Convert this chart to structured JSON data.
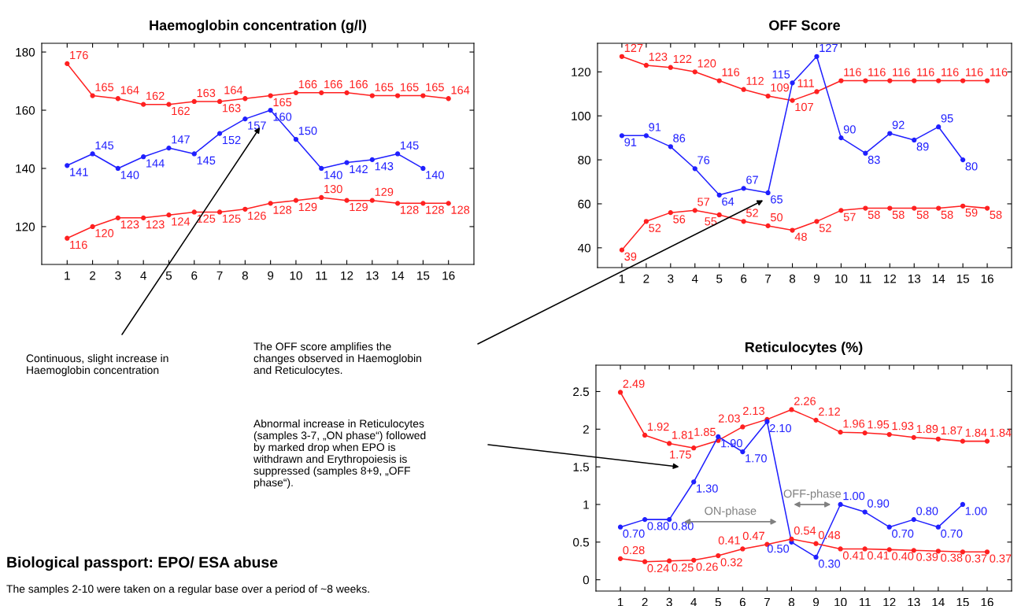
{
  "chart_data": [
    {
      "type": "line",
      "title": "Haemoglobin concentration (g/l)",
      "x": [
        1,
        2,
        3,
        4,
        5,
        6,
        7,
        8,
        9,
        10,
        11,
        12,
        13,
        14,
        15,
        16
      ],
      "xlim": [
        0,
        17
      ],
      "xticks": [
        1,
        2,
        3,
        4,
        5,
        6,
        7,
        8,
        9,
        10,
        11,
        12,
        13,
        14,
        15,
        16
      ],
      "ylim": [
        107,
        183
      ],
      "yticks": [
        120,
        140,
        160,
        180
      ],
      "marker": "circle",
      "data_labels": true,
      "series": [
        {
          "color": "#ff2020",
          "values": [
            176,
            165,
            164,
            162,
            162,
            163,
            163,
            164,
            165,
            166,
            166,
            166,
            165,
            165,
            165,
            164
          ]
        },
        {
          "color": "#2020ff",
          "values": [
            141,
            145,
            140,
            144,
            147,
            145,
            152,
            157,
            160,
            150,
            140,
            142,
            143,
            145,
            140,
            null
          ]
        },
        {
          "color": "#ff2020",
          "values": [
            116,
            120,
            123,
            123,
            124,
            125,
            125,
            126,
            128,
            129,
            130,
            129,
            129,
            128,
            128,
            128
          ]
        }
      ],
      "annotations": [
        "Continuous, slight increase in\nHaemoglobin concentration",
        "Biological passport: EPO/ ESA abuse",
        "The samples 2-10 were taken on a regular base over a period of ~8 weeks."
      ]
    },
    {
      "type": "line",
      "title": "OFF Score",
      "x": [
        1,
        2,
        3,
        4,
        5,
        6,
        7,
        8,
        9,
        10,
        11,
        12,
        13,
        14,
        15,
        16
      ],
      "xlim": [
        0,
        17
      ],
      "xticks": [
        1,
        2,
        3,
        4,
        5,
        6,
        7,
        8,
        9,
        10,
        11,
        12,
        13,
        14,
        15,
        16
      ],
      "ylim": [
        31,
        133
      ],
      "yticks": [
        40,
        60,
        80,
        100,
        120
      ],
      "marker": "circle",
      "data_labels": true,
      "series": [
        {
          "color": "#ff2020",
          "values": [
            127,
            123,
            122,
            120,
            116,
            112,
            109,
            107,
            111,
            116,
            116,
            116,
            116,
            116,
            116,
            116
          ]
        },
        {
          "color": "#2020ff",
          "values": [
            91,
            91,
            86,
            76,
            64,
            67,
            65,
            115,
            127,
            90,
            83,
            92,
            89,
            95,
            80,
            null
          ]
        },
        {
          "color": "#ff2020",
          "values": [
            39,
            52,
            56,
            57,
            55,
            52,
            50,
            48,
            52,
            57,
            58,
            58,
            58,
            58,
            59,
            58
          ]
        }
      ],
      "annotations": [
        "The OFF score amplifies the\nchanges observed in Haemoglobin\nand Reticulocytes."
      ]
    },
    {
      "type": "line",
      "title": "Reticulocytes (%)",
      "x": [
        1,
        2,
        3,
        4,
        5,
        6,
        7,
        8,
        9,
        10,
        11,
        12,
        13,
        14,
        15,
        16
      ],
      "xlim": [
        0,
        17
      ],
      "xticks": [
        1,
        2,
        3,
        4,
        5,
        6,
        7,
        8,
        9,
        10,
        11,
        12,
        13,
        14,
        15,
        16
      ],
      "ylim": [
        -0.15,
        2.85
      ],
      "yticks": [
        0,
        0.5,
        1,
        1.5,
        2,
        2.5
      ],
      "marker": "circle",
      "series": [
        {
          "color": "#ff2020",
          "values": [
            2.49,
            1.92,
            1.81,
            1.75,
            1.85,
            2.03,
            2.13,
            2.26,
            2.12,
            1.96,
            1.95,
            1.93,
            1.89,
            1.87,
            1.84,
            1.84
          ],
          "value_labels": [
            "2.49",
            "1.92",
            "1.81",
            "1.75",
            "1.85",
            "2.03",
            "2.13",
            "2.26",
            "2.12",
            "1.96",
            "1.95",
            "1.93",
            "1.89",
            "1.87",
            "1.84",
            "1.84"
          ]
        },
        {
          "color": "#2020ff",
          "values": [
            0.7,
            0.8,
            0.8,
            1.3,
            1.9,
            1.7,
            2.1,
            0.5,
            0.3,
            1.0,
            0.9,
            0.7,
            0.8,
            0.7,
            1.0,
            null
          ],
          "value_labels": [
            "0.70",
            "0.80",
            "0.80",
            "1.30",
            "1.90",
            "1.70",
            "2.10",
            "0.50",
            "0.30",
            "1.00",
            "0.90",
            "0.70",
            "0.80",
            "0.70",
            "1.00",
            null
          ]
        },
        {
          "color": "#ff2020",
          "values": [
            0.28,
            0.24,
            0.25,
            0.26,
            0.32,
            0.41,
            0.47,
            0.54,
            0.48,
            0.41,
            0.41,
            0.4,
            0.39,
            0.38,
            0.37,
            0.37
          ],
          "value_labels": [
            "0.28",
            "0.24",
            "0.25",
            "0.26",
            "0.32",
            "0.41",
            "0.47",
            "0.54",
            "0.48",
            "0.41",
            "0.41",
            "0.40",
            "0.39",
            "0.38",
            "0.37",
            "0.37"
          ]
        }
      ],
      "annotations": [
        "Abnormal increase in Reticulocytes\n(samples 3-7, „ON phase“) followed\nby marked drop when EPO is\nwithdrawn and Erythropoiesis is\nsuppressed (samples 8+9, „OFF\nphase“).",
        "ON-phase",
        "OFF-phase"
      ]
    }
  ]
}
